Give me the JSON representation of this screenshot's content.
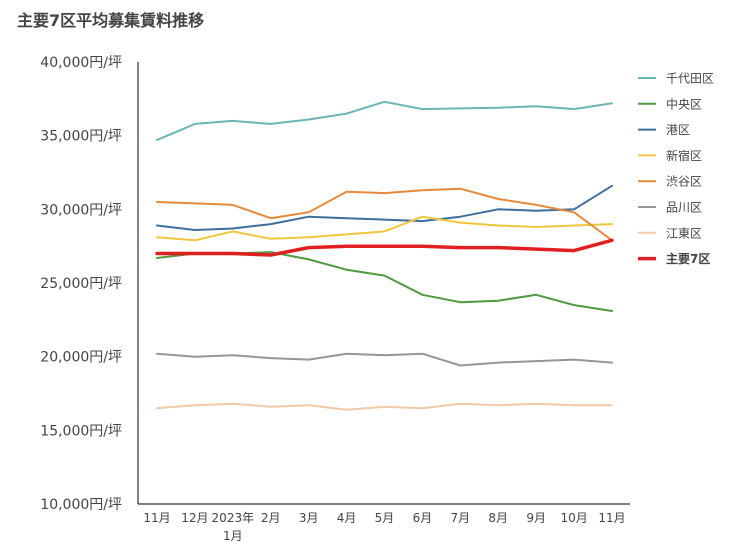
{
  "chart_data": {
    "type": "line",
    "title": "主要7区平均募集賃料推移",
    "x": [
      "11月",
      "12月",
      "2023年\n1月",
      "2月",
      "3月",
      "4月",
      "5月",
      "6月",
      "7月",
      "8月",
      "9月",
      "10月",
      "11月"
    ],
    "ylim": [
      10000,
      40000
    ],
    "yticks": [
      "10,000円/坪",
      "15,000円/坪",
      "20,000円/坪",
      "25,000円/坪",
      "30,000円/坪",
      "35,000円/坪",
      "40,000円/坪"
    ],
    "ytick_values": [
      10000,
      15000,
      20000,
      25000,
      30000,
      35000,
      40000
    ],
    "legend_position": "right",
    "series": [
      {
        "name": "千代田区",
        "color": "#6cb5b5",
        "values": [
          34700,
          35800,
          36000,
          35800,
          36100,
          36500,
          37300,
          36800,
          36850,
          36900,
          37000,
          36800,
          37200
        ]
      },
      {
        "name": "中央区",
        "color": "#4e9a3e",
        "values": [
          26700,
          27000,
          27000,
          27100,
          26600,
          25900,
          25500,
          24200,
          23700,
          23800,
          24200,
          23500,
          23100
        ]
      },
      {
        "name": "港区",
        "color": "#3f6e9e",
        "values": [
          28900,
          28600,
          28700,
          29000,
          29500,
          29400,
          29300,
          29200,
          29500,
          30000,
          29900,
          30000,
          31600
        ]
      },
      {
        "name": "新宿区",
        "color": "#f0c63d",
        "values": [
          28100,
          27900,
          28500,
          28000,
          28100,
          28300,
          28500,
          29500,
          29100,
          28900,
          28800,
          28900,
          29000
        ]
      },
      {
        "name": "渋谷区",
        "color": "#e58a3c",
        "values": [
          30500,
          30400,
          30300,
          29400,
          29800,
          31200,
          31100,
          31300,
          31400,
          30700,
          30300,
          29800,
          27900
        ]
      },
      {
        "name": "品川区",
        "color": "#969696",
        "values": [
          20200,
          20000,
          20100,
          19900,
          19800,
          20200,
          20100,
          20200,
          19400,
          19600,
          19700,
          19800,
          19600
        ]
      },
      {
        "name": "江東区",
        "color": "#f3c9a5",
        "values": [
          16500,
          16700,
          16800,
          16600,
          16700,
          16400,
          16600,
          16500,
          16800,
          16700,
          16800,
          16700,
          16700
        ]
      },
      {
        "name": "主要7区",
        "color": "#e02020",
        "bold": true,
        "values": [
          27000,
          27000,
          27000,
          26900,
          27400,
          27500,
          27500,
          27500,
          27400,
          27400,
          27300,
          27200,
          27900
        ]
      }
    ]
  }
}
